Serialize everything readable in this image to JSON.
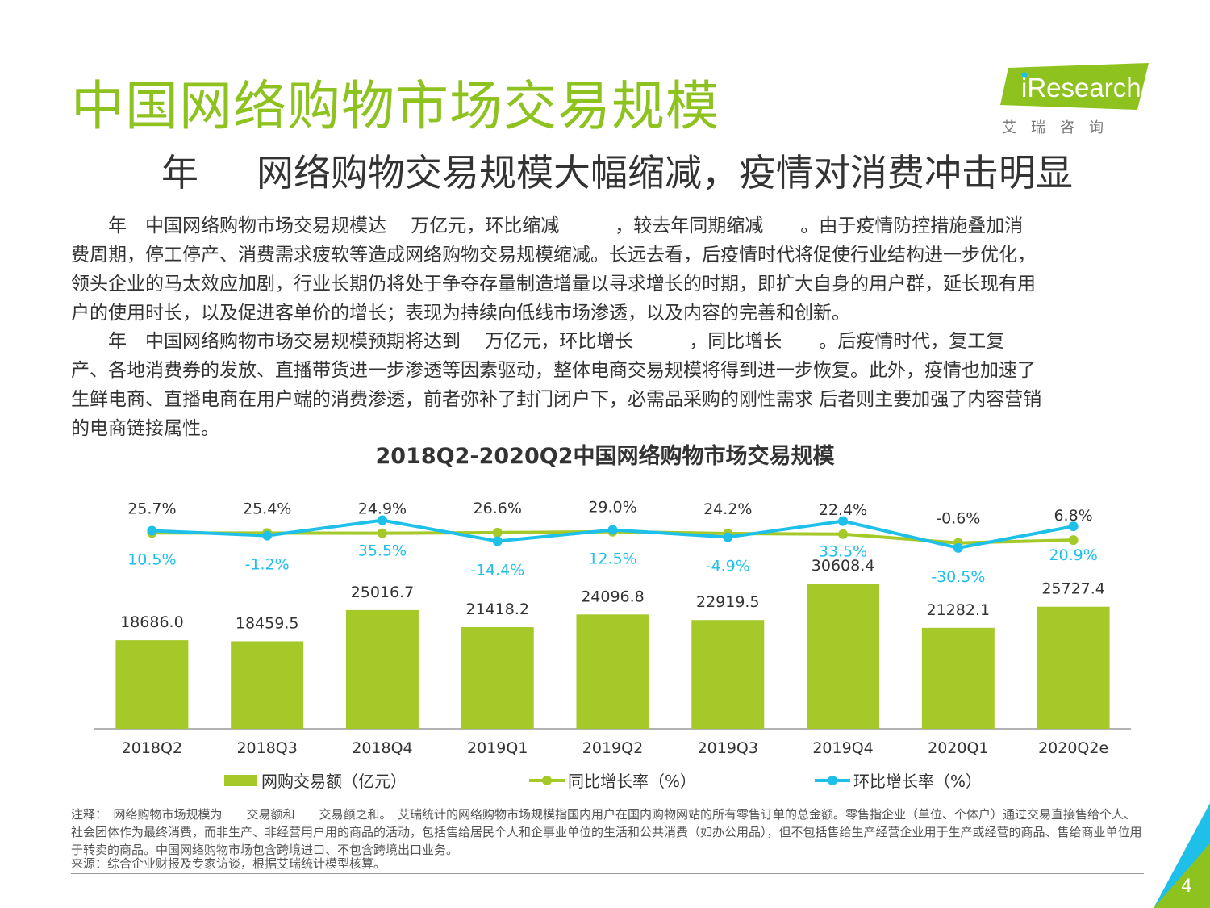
{
  "header": {
    "title": "中国网络购物市场交易规模",
    "subtitle_year": "年",
    "subtitle_text": "网络购物交易规模大幅缩减，疫情对消费冲击明显"
  },
  "logo": {
    "name": "iResearch",
    "cn": "艾瑞咨询"
  },
  "body": {
    "p1": [
      "　　年　中国网络购物市场交易规模达　 万亿元，环比缩减　　　，较去年同期缩减　　。由于疫情防控措施叠加消",
      "费周期，停工停产、消费需求疲软等造成网络购物交易规模缩减。长远去看，后疫情时代将促使行业结构进一步优化，",
      "领头企业的马太效应加剧，行业长期仍将处于争夺存量制造增量以寻求增长的时期，即扩大自身的用户群，延长现有用",
      "户的使用时长，以及促进客单价的增长；表现为持续向低线市场渗透，以及内容的完善和创新。"
    ],
    "p2": [
      "　　年　中国网络购物市场交易规模预期将达到　 万亿元，环比增长　　　，同比增长　　。后疫情时代，复工复",
      "产、各地消费券的发放、直播带货进一步渗透等因素驱动，整体电商交易规模将得到进一步恢复。此外，疫情也加速了",
      "生鲜电商、直播电商在用户端的消费渗透，前者弥补了封门闭户下，必需品采购的刚性需求 后者则主要加强了内容营销",
      "的电商链接属性。"
    ]
  },
  "chart_data": {
    "type": "bar",
    "title": "2018Q2-2020Q2中国网络购物市场交易规模",
    "categories": [
      "2018Q2",
      "2018Q3",
      "2018Q4",
      "2019Q1",
      "2019Q2",
      "2019Q3",
      "2019Q4",
      "2020Q1",
      "2020Q2e"
    ],
    "series": [
      {
        "name": "网购交易额（亿元）",
        "kind": "bar",
        "values": [
          18686.0,
          18459.5,
          25016.7,
          21418.2,
          24096.8,
          22919.5,
          30608.4,
          21282.1,
          25727.4
        ],
        "labels": [
          "18686.0",
          "18459.5",
          "25016.7",
          "21418.2",
          "24096.8",
          "22919.5",
          "30608.4",
          "21282.1",
          "25727.4"
        ]
      },
      {
        "name": "同比增长率（%）",
        "kind": "line",
        "values": [
          25.7,
          25.4,
          24.9,
          26.6,
          29.0,
          24.2,
          22.4,
          -0.6,
          6.8
        ],
        "labels": [
          "25.7%",
          "25.4%",
          "24.9%",
          "26.6%",
          "29.0%",
          "24.2%",
          "22.4%",
          "-0.6%",
          "6.8%"
        ]
      },
      {
        "name": "环比增长率（%）",
        "kind": "line",
        "values": [
          10.5,
          -1.2,
          35.5,
          -14.4,
          12.5,
          -4.9,
          33.5,
          -30.5,
          20.9
        ],
        "labels": [
          "10.5%",
          "-1.2%",
          "35.5%",
          "-14.4%",
          "12.5%",
          "-4.9%",
          "33.5%",
          "-30.5%",
          "20.9%"
        ]
      }
    ],
    "colors": {
      "bar": "#a6c92a",
      "yoy": "#a6c92a",
      "qoq": "#1ec0ea"
    },
    "ylabel": "",
    "xlabel": ""
  },
  "notes": {
    "note": "注释：　网络购物市场规模为　　交易额和　　交易额之和。　艾瑞统计的网络购物市场规模指国内用户在国内购物网站的所有零售订单的总金额。零售指企业（单位、个体户）通过交易直接售给个人、社会团体作为最终消费，而非生产、非经营用户用的商品的活动，包括售给居民个人和企事业单位的生活和公共消费（如办公用品），但不包括售给生产经营企业用于生产或经营的商品、售给商业单位用于转卖的商品。中国网络购物市场包含跨境进口、不包含跨境出口业务。",
    "source": "来源：综合企业财报及专家访谈，根据艾瑞统计模型核算。"
  },
  "page_number": "4"
}
